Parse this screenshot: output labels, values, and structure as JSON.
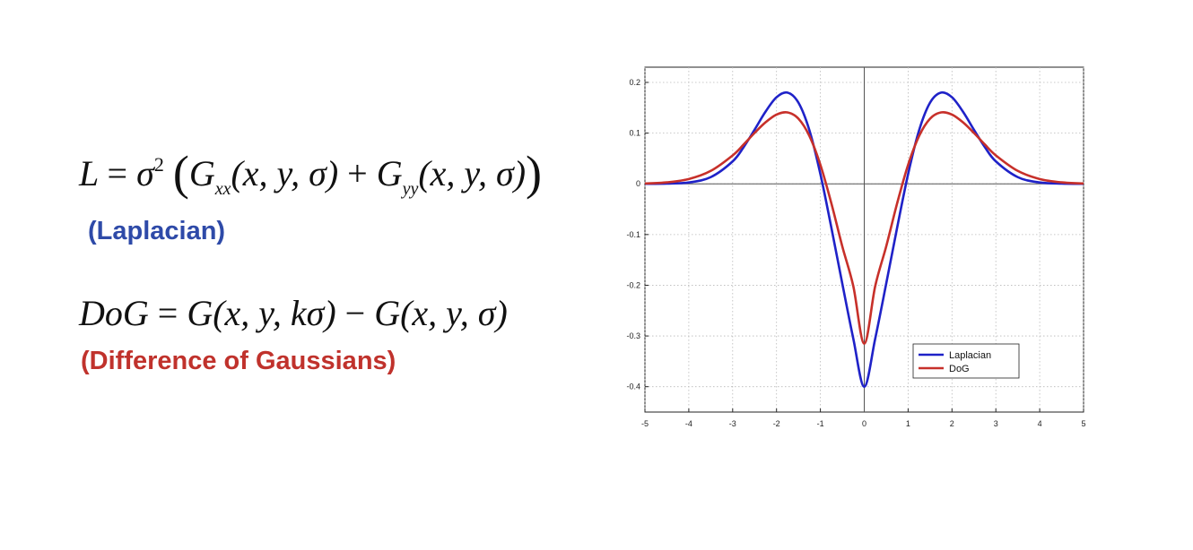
{
  "equations": {
    "laplacian": {
      "lhs": "L",
      "eq": "=",
      "sigma": "σ",
      "sq": "2",
      "lparen": "(",
      "g1": "G",
      "sub1": "xx",
      "args1": "(x, y, σ)",
      "plus": "+",
      "g2": "G",
      "sub2": "yy",
      "args2": "(x, y, σ)",
      "rparen": ")"
    },
    "laplacian_caption": "(Laplacian)",
    "dog": {
      "lhs": "DoG",
      "eq": "=",
      "term1": "G(x, y, kσ)",
      "minus": "−",
      "term2": "G(x, y, σ)"
    },
    "dog_caption": "(Difference of Gaussians)"
  },
  "colors": {
    "laplacian": "#1f22c8",
    "dog": "#c7302a",
    "caption_laplacian": "#2e4aa8",
    "caption_dog": "#c0322c"
  },
  "chart_data": {
    "type": "line",
    "title": "",
    "xlabel": "",
    "ylabel": "",
    "xlim": [
      -5,
      5
    ],
    "ylim": [
      -0.45,
      0.23
    ],
    "xticks": [
      -5,
      -4,
      -3,
      -2,
      -1,
      0,
      1,
      2,
      3,
      4,
      5
    ],
    "yticks": [
      0.2,
      0.1,
      0,
      -0.1,
      -0.2,
      -0.3,
      -0.4
    ],
    "xtick_labels": [
      "-5",
      "-4",
      "-3",
      "-2",
      "-1",
      "0",
      "1",
      "2",
      "3",
      "4",
      "5"
    ],
    "ytick_labels": [
      "0.2",
      "0.1",
      "0",
      "-0.1",
      "-0.2",
      "-0.3",
      "-0.4"
    ],
    "grid": true,
    "legend_position": "bottom-right",
    "x": [
      -5,
      -4.5,
      -4,
      -3.5,
      -3,
      -2.75,
      -2.5,
      -2.25,
      -2,
      -1.75,
      -1.5,
      -1.25,
      -1,
      -0.75,
      -0.5,
      -0.25,
      0,
      0.25,
      0.5,
      0.75,
      1,
      1.25,
      1.5,
      1.75,
      2,
      2.25,
      2.5,
      2.75,
      3,
      3.5,
      4,
      4.5,
      5
    ],
    "series": [
      {
        "name": "Laplacian",
        "color": "#1f22c8",
        "values": [
          0,
          0.0004,
          0.0027,
          0.0132,
          0.0443,
          0.0724,
          0.1067,
          0.1424,
          0.1707,
          0.1799,
          0.16,
          0.1055,
          0.0193,
          -0.0863,
          -0.1971,
          -0.3051,
          -0.4,
          -0.3051,
          -0.1971,
          -0.0863,
          0.0193,
          0.1055,
          0.16,
          0.1799,
          0.1707,
          0.1424,
          0.1067,
          0.0724,
          0.0443,
          0.0132,
          0.0027,
          0.0004,
          0
        ]
      },
      {
        "name": "DoG",
        "color": "#c7302a",
        "values": [
          0.0007,
          0.0029,
          0.0095,
          0.0255,
          0.0561,
          0.0775,
          0.1004,
          0.1213,
          0.1365,
          0.1408,
          0.1285,
          0.0944,
          0.0375,
          -0.0383,
          -0.1236,
          -0.2015,
          -0.315,
          -0.2015,
          -0.1236,
          -0.0383,
          0.0375,
          0.0944,
          0.1285,
          0.1408,
          0.1365,
          0.1213,
          0.1004,
          0.0775,
          0.0561,
          0.0255,
          0.0095,
          0.0029,
          0.0007
        ]
      }
    ]
  }
}
